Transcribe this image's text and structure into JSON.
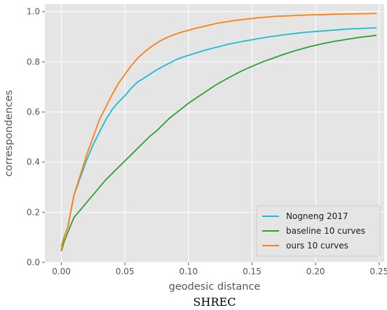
{
  "chart_data": {
    "type": "line",
    "caption": "SHREC",
    "xlabel": "geodesic distance",
    "ylabel": "correspondences",
    "xlim": [
      -0.013,
      0.254
    ],
    "ylim": [
      0.0,
      1.03
    ],
    "xticks": [
      0.0,
      0.05,
      0.1,
      0.15,
      0.2,
      0.25
    ],
    "xtick_labels": [
      "0.00",
      "0.05",
      "0.10",
      "0.15",
      "0.20",
      "0.25"
    ],
    "yticks": [
      0.0,
      0.2,
      0.4,
      0.6,
      0.8,
      1.0
    ],
    "ytick_labels": [
      "0.0",
      "0.2",
      "0.4",
      "0.6",
      "0.8",
      "1.0"
    ],
    "grid": true,
    "style": "ggplot",
    "legend": "lower-right",
    "series": [
      {
        "name": "Nogneng 2017",
        "color": "#17becf",
        "x": [
          0.0,
          0.002,
          0.005,
          0.01,
          0.015,
          0.02,
          0.025,
          0.03,
          0.035,
          0.04,
          0.045,
          0.05,
          0.055,
          0.06,
          0.065,
          0.07,
          0.075,
          0.08,
          0.085,
          0.09,
          0.095,
          0.1,
          0.105,
          0.11,
          0.115,
          0.12,
          0.125,
          0.13,
          0.135,
          0.14,
          0.145,
          0.15,
          0.155,
          0.16,
          0.165,
          0.17,
          0.175,
          0.18,
          0.185,
          0.19,
          0.195,
          0.2,
          0.205,
          0.21,
          0.215,
          0.22,
          0.225,
          0.23,
          0.235,
          0.24,
          0.245,
          0.248
        ],
        "y": [
          0.065,
          0.1,
          0.14,
          0.27,
          0.34,
          0.41,
          0.47,
          0.52,
          0.57,
          0.61,
          0.64,
          0.665,
          0.695,
          0.72,
          0.735,
          0.752,
          0.768,
          0.782,
          0.795,
          0.808,
          0.818,
          0.826,
          0.834,
          0.842,
          0.849,
          0.856,
          0.862,
          0.869,
          0.874,
          0.879,
          0.884,
          0.888,
          0.893,
          0.897,
          0.901,
          0.904,
          0.908,
          0.911,
          0.914,
          0.917,
          0.919,
          0.921,
          0.923,
          0.925,
          0.927,
          0.929,
          0.931,
          0.932,
          0.933,
          0.934,
          0.935,
          0.936
        ]
      },
      {
        "name": "baseline 10 curves",
        "color": "#2ca02c",
        "x": [
          0.0,
          0.002,
          0.005,
          0.01,
          0.015,
          0.02,
          0.025,
          0.03,
          0.035,
          0.04,
          0.045,
          0.05,
          0.055,
          0.06,
          0.065,
          0.07,
          0.075,
          0.08,
          0.085,
          0.09,
          0.095,
          0.1,
          0.105,
          0.11,
          0.115,
          0.12,
          0.125,
          0.13,
          0.135,
          0.14,
          0.145,
          0.15,
          0.155,
          0.16,
          0.165,
          0.17,
          0.175,
          0.18,
          0.185,
          0.19,
          0.195,
          0.2,
          0.205,
          0.21,
          0.215,
          0.22,
          0.225,
          0.23,
          0.235,
          0.24,
          0.245,
          0.248
        ],
        "y": [
          0.045,
          0.08,
          0.12,
          0.18,
          0.21,
          0.24,
          0.27,
          0.3,
          0.33,
          0.355,
          0.38,
          0.405,
          0.43,
          0.455,
          0.48,
          0.505,
          0.525,
          0.55,
          0.575,
          0.595,
          0.615,
          0.635,
          0.652,
          0.669,
          0.686,
          0.703,
          0.718,
          0.732,
          0.746,
          0.759,
          0.771,
          0.782,
          0.793,
          0.803,
          0.812,
          0.821,
          0.83,
          0.838,
          0.846,
          0.853,
          0.86,
          0.866,
          0.872,
          0.877,
          0.882,
          0.886,
          0.89,
          0.894,
          0.898,
          0.901,
          0.904,
          0.906
        ]
      },
      {
        "name": "ours 10 curves",
        "color": "#ff7f0e",
        "x": [
          0.0,
          0.002,
          0.005,
          0.01,
          0.015,
          0.02,
          0.025,
          0.03,
          0.035,
          0.04,
          0.045,
          0.05,
          0.055,
          0.06,
          0.065,
          0.07,
          0.075,
          0.08,
          0.085,
          0.09,
          0.095,
          0.1,
          0.105,
          0.11,
          0.115,
          0.12,
          0.125,
          0.13,
          0.135,
          0.14,
          0.145,
          0.15,
          0.155,
          0.16,
          0.165,
          0.17,
          0.175,
          0.18,
          0.185,
          0.19,
          0.195,
          0.2,
          0.205,
          0.21,
          0.215,
          0.22,
          0.225,
          0.23,
          0.235,
          0.24,
          0.245,
          0.248
        ],
        "y": [
          0.05,
          0.1,
          0.14,
          0.27,
          0.35,
          0.43,
          0.5,
          0.57,
          0.62,
          0.67,
          0.715,
          0.75,
          0.785,
          0.815,
          0.838,
          0.858,
          0.875,
          0.89,
          0.901,
          0.911,
          0.919,
          0.926,
          0.933,
          0.939,
          0.945,
          0.951,
          0.956,
          0.96,
          0.964,
          0.967,
          0.97,
          0.973,
          0.976,
          0.978,
          0.98,
          0.982,
          0.983,
          0.984,
          0.985,
          0.986,
          0.987,
          0.988,
          0.988,
          0.989,
          0.99,
          0.99,
          0.991,
          0.991,
          0.992,
          0.992,
          0.993,
          0.993
        ]
      }
    ]
  }
}
